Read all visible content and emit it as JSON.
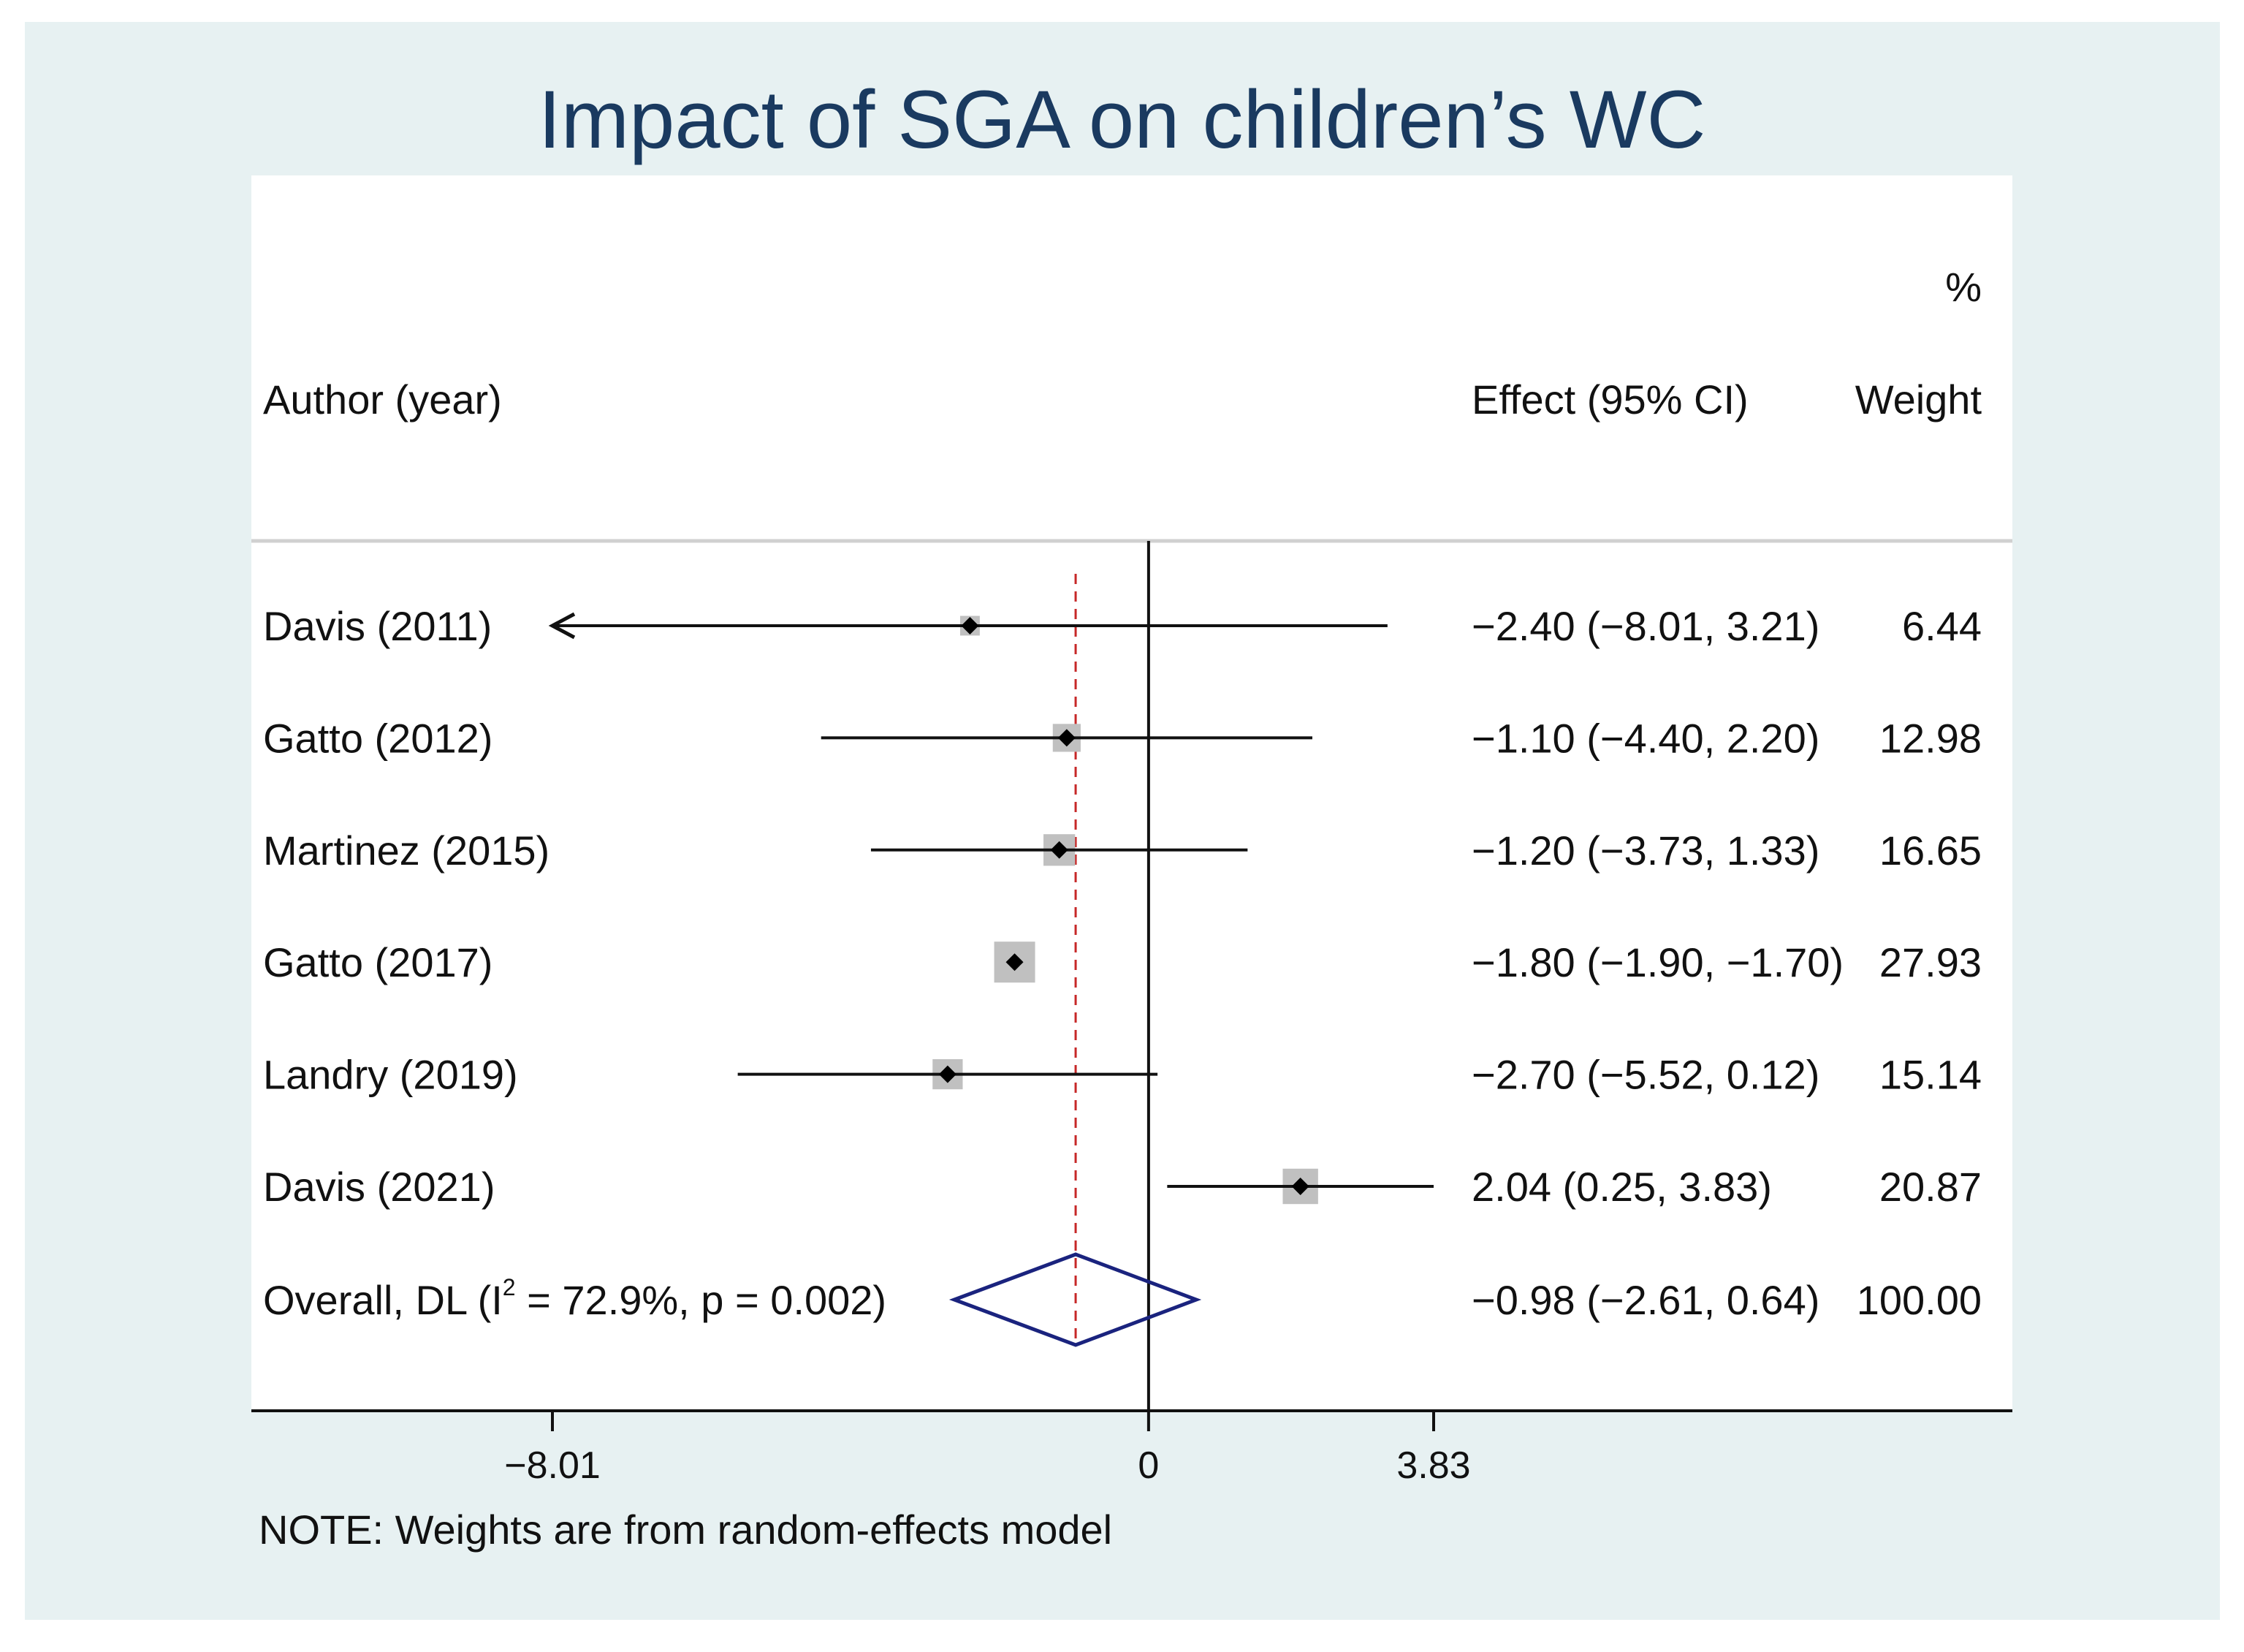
{
  "chart_data": {
    "type": "forest",
    "title": "Impact of SGA on children’s WC",
    "header": {
      "study": "Author (year)",
      "effect": "Effect (95% CI)",
      "weight_pct": "%",
      "weight": "Weight"
    },
    "xlim": [
      -8.01,
      3.83
    ],
    "x_ticks": [
      {
        "value": -8.01,
        "label": "−8.01"
      },
      {
        "value": 0,
        "label": "0"
      },
      {
        "value": 3.83,
        "label": "3.83"
      }
    ],
    "null_line": 0,
    "overall_line": -0.98,
    "studies": [
      {
        "label": "Davis (2011)",
        "effect": -2.4,
        "lo": -8.01,
        "hi": 3.21,
        "lo_arrow": true,
        "ci_text": "−2.40 (−8.01, 3.21)",
        "weight": 6.44,
        "weight_text": "6.44"
      },
      {
        "label": "Gatto (2012)",
        "effect": -1.1,
        "lo": -4.4,
        "hi": 2.2,
        "ci_text": "−1.10 (−4.40, 2.20)",
        "weight": 12.98,
        "weight_text": "12.98"
      },
      {
        "label": "Martinez (2015)",
        "effect": -1.2,
        "lo": -3.73,
        "hi": 1.33,
        "ci_text": "−1.20 (−3.73, 1.33)",
        "weight": 16.65,
        "weight_text": "16.65"
      },
      {
        "label": "Gatto (2017)",
        "effect": -1.8,
        "lo": -1.9,
        "hi": -1.7,
        "ci_text": "−1.80 (−1.90, −1.70)",
        "weight": 27.93,
        "weight_text": "27.93"
      },
      {
        "label": "Landry (2019)",
        "effect": -2.7,
        "lo": -5.52,
        "hi": 0.12,
        "ci_text": "−2.70 (−5.52, 0.12)",
        "weight": 15.14,
        "weight_text": "15.14"
      },
      {
        "label": "Davis (2021)",
        "effect": 2.04,
        "lo": 0.25,
        "hi": 3.83,
        "ci_text": "2.04 (0.25, 3.83)",
        "weight": 20.87,
        "weight_text": "20.87"
      }
    ],
    "overall": {
      "label_prefix": "Overall, DL (I",
      "label_sup": "2",
      "label_suffix": " = 72.9%, p = 0.002)",
      "effect": -0.98,
      "lo": -2.61,
      "hi": 0.64,
      "ci_text": "−0.98 (−2.61, 0.64)",
      "weight_text": "100.00"
    },
    "note": "NOTE: Weights are from random-effects model",
    "colors": {
      "background": "#e7f1f2",
      "title": "#1a3a60",
      "diamond": "#1a237e",
      "overall_line": "#c62828",
      "box": "#c0c0c0",
      "line": "#111111"
    }
  }
}
